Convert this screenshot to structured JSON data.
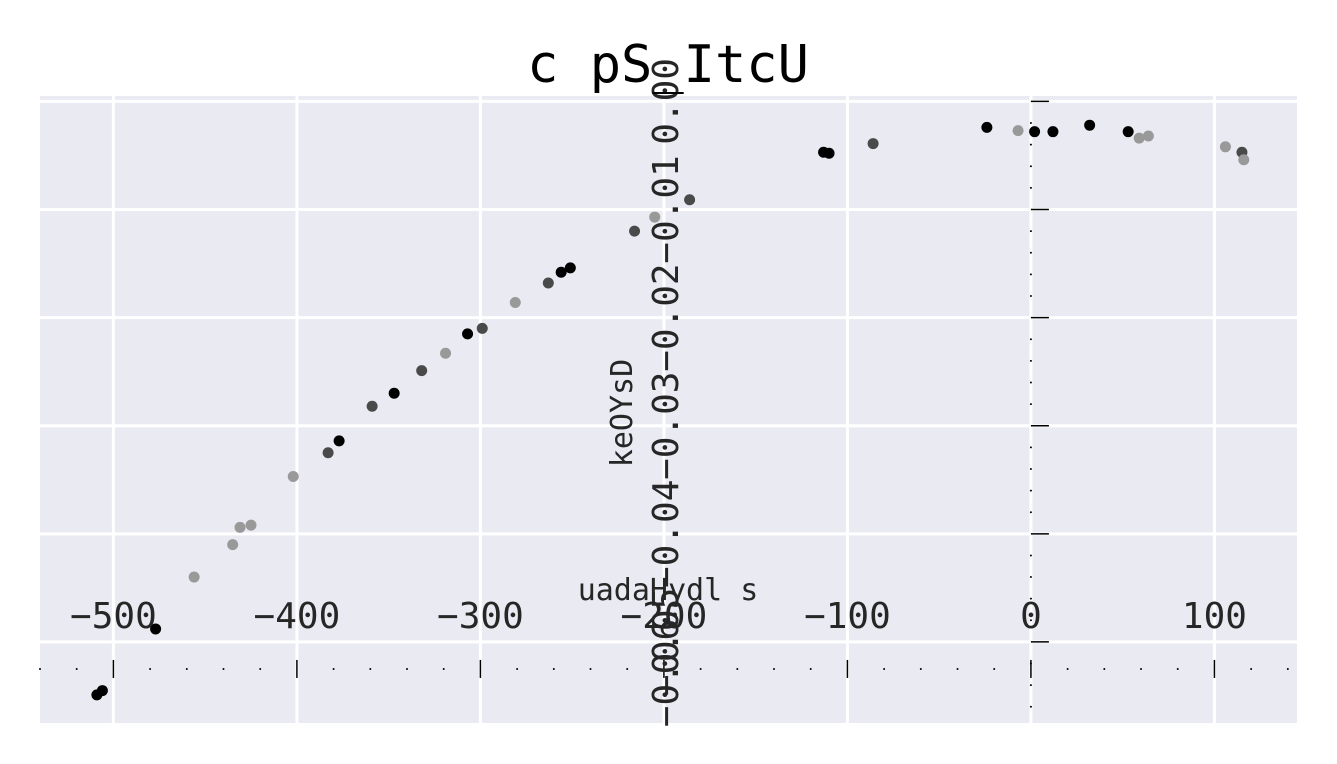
{
  "chart_data": {
    "type": "scatter",
    "title": "c pS_ItcU",
    "xlabel": "uadaHydl s",
    "ylabel": "keOYsD",
    "xlim": [
      -540,
      145
    ],
    "ylim": [
      -0.0575,
      0.0005
    ],
    "x_ticks": [
      -500,
      -400,
      -300,
      -200,
      -100,
      0,
      100
    ],
    "x_tick_labels": [
      "−500",
      "−400",
      "−300",
      "−200",
      "−100",
      "0",
      "100"
    ],
    "y_ticks": [
      0.0,
      -0.01,
      -0.02,
      -0.03,
      -0.04,
      -0.05,
      -0.06
    ],
    "y_tick_labels": [
      "0.00",
      "−0.01",
      "−0.02",
      "−0.03",
      "−0.04",
      "−0.05",
      "−0.06"
    ],
    "grid": true,
    "background": "#eaeaf2",
    "colors": {
      "black": "#000000",
      "dark": "#4a4a4a",
      "light": "#999999"
    },
    "points": [
      {
        "x": -509,
        "y": -0.0549,
        "c": "black"
      },
      {
        "x": -506,
        "y": -0.0545,
        "c": "black"
      },
      {
        "x": -477,
        "y": -0.0488,
        "c": "black"
      },
      {
        "x": -456,
        "y": -0.044,
        "c": "light"
      },
      {
        "x": -435,
        "y": -0.041,
        "c": "light"
      },
      {
        "x": -431,
        "y": -0.0394,
        "c": "light"
      },
      {
        "x": -425,
        "y": -0.0392,
        "c": "light"
      },
      {
        "x": -402,
        "y": -0.0347,
        "c": "light"
      },
      {
        "x": -383,
        "y": -0.0325,
        "c": "dark"
      },
      {
        "x": -377,
        "y": -0.0314,
        "c": "black"
      },
      {
        "x": -359,
        "y": -0.0282,
        "c": "dark"
      },
      {
        "x": -347,
        "y": -0.027,
        "c": "black"
      },
      {
        "x": -332,
        "y": -0.0249,
        "c": "dark"
      },
      {
        "x": -319,
        "y": -0.0233,
        "c": "light"
      },
      {
        "x": -307,
        "y": -0.0215,
        "c": "black"
      },
      {
        "x": -299,
        "y": -0.021,
        "c": "dark"
      },
      {
        "x": -281,
        "y": -0.0186,
        "c": "light"
      },
      {
        "x": -263,
        "y": -0.0168,
        "c": "dark"
      },
      {
        "x": -256,
        "y": -0.0158,
        "c": "black"
      },
      {
        "x": -251,
        "y": -0.0154,
        "c": "black"
      },
      {
        "x": -216,
        "y": -0.012,
        "c": "dark"
      },
      {
        "x": -205,
        "y": -0.0107,
        "c": "light"
      },
      {
        "x": -186,
        "y": -0.0091,
        "c": "dark"
      },
      {
        "x": -113,
        "y": -0.0047,
        "c": "black"
      },
      {
        "x": -110,
        "y": -0.0048,
        "c": "black"
      },
      {
        "x": -86,
        "y": -0.0039,
        "c": "dark"
      },
      {
        "x": -24,
        "y": -0.0024,
        "c": "black"
      },
      {
        "x": -7,
        "y": -0.0027,
        "c": "light"
      },
      {
        "x": 2,
        "y": -0.0028,
        "c": "black"
      },
      {
        "x": 12,
        "y": -0.0028,
        "c": "black"
      },
      {
        "x": 32,
        "y": -0.0022,
        "c": "black"
      },
      {
        "x": 53,
        "y": -0.0028,
        "c": "black"
      },
      {
        "x": 59,
        "y": -0.0034,
        "c": "light"
      },
      {
        "x": 64,
        "y": -0.0032,
        "c": "light"
      },
      {
        "x": 106,
        "y": -0.0042,
        "c": "light"
      },
      {
        "x": 115,
        "y": -0.0047,
        "c": "dark"
      },
      {
        "x": 116,
        "y": -0.0054,
        "c": "light"
      }
    ]
  }
}
